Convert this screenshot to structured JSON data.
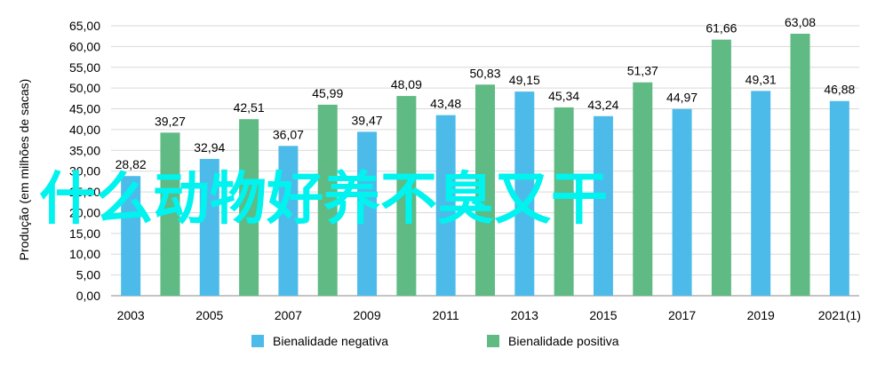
{
  "chart_data": {
    "type": "bar",
    "ylabel": "Produção (em milhões de sacas)",
    "ylim": [
      0,
      65
    ],
    "ytick_step": 5,
    "ytick_labels": [
      "0,00",
      "5,00",
      "10,00",
      "15,00",
      "20,00",
      "25,00",
      "30,00",
      "35,00",
      "40,00",
      "45,00",
      "50,00",
      "55,00",
      "60,00",
      "65,00"
    ],
    "grid": true,
    "legend_position": "bottom",
    "xtick_labels": [
      "2003",
      "2005",
      "2007",
      "2009",
      "2011",
      "2013",
      "2015",
      "2017",
      "2019",
      "2021(1)"
    ],
    "bars": [
      {
        "x": "2003",
        "value": 28.82,
        "label": "28,82",
        "series": 0
      },
      {
        "x": "2004",
        "value": 39.27,
        "label": "39,27",
        "series": 1
      },
      {
        "x": "2005",
        "value": 32.94,
        "label": "32,94",
        "series": 0
      },
      {
        "x": "2006",
        "value": 42.51,
        "label": "42,51",
        "series": 1
      },
      {
        "x": "2007",
        "value": 36.07,
        "label": "36,07",
        "series": 0
      },
      {
        "x": "2008",
        "value": 45.99,
        "label": "45,99",
        "series": 1
      },
      {
        "x": "2009",
        "value": 39.47,
        "label": "39,47",
        "series": 0
      },
      {
        "x": "2010",
        "value": 48.09,
        "label": "48,09",
        "series": 1
      },
      {
        "x": "2011",
        "value": 43.48,
        "label": "43,48",
        "series": 0
      },
      {
        "x": "2012",
        "value": 50.83,
        "label": "50,83",
        "series": 1
      },
      {
        "x": "2013",
        "value": 49.15,
        "label": "49,15",
        "series": 0
      },
      {
        "x": "2014",
        "value": 45.34,
        "label": "45,34",
        "series": 1
      },
      {
        "x": "2015",
        "value": 43.24,
        "label": "43,24",
        "series": 0
      },
      {
        "x": "2016",
        "value": 51.37,
        "label": "51,37",
        "series": 1
      },
      {
        "x": "2017",
        "value": 44.97,
        "label": "44,97",
        "series": 0
      },
      {
        "x": "2018",
        "value": 61.66,
        "label": "61,66",
        "series": 1
      },
      {
        "x": "2019",
        "value": 49.31,
        "label": "49,31",
        "series": 0
      },
      {
        "x": "2020",
        "value": 63.08,
        "label": "63,08",
        "series": 1
      },
      {
        "x": "2021(1)",
        "value": 46.88,
        "label": "46,88",
        "series": 0
      }
    ],
    "series": [
      {
        "name": "Bienalidade negativa",
        "color": "#4dbbea"
      },
      {
        "name": "Bienalidade positiva",
        "color": "#5fba83"
      }
    ]
  },
  "overlay_text": "什么动物好养不臭又干"
}
